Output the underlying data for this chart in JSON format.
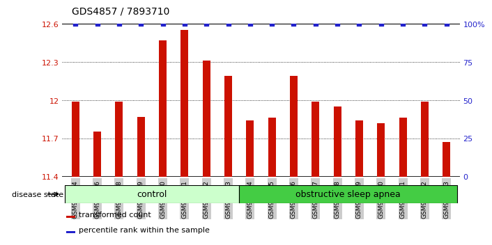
{
  "title": "GDS4857 / 7893710",
  "samples": [
    "GSM949164",
    "GSM949166",
    "GSM949168",
    "GSM949169",
    "GSM949170",
    "GSM949171",
    "GSM949172",
    "GSM949173",
    "GSM949174",
    "GSM949175",
    "GSM949176",
    "GSM949177",
    "GSM949178",
    "GSM949179",
    "GSM949180",
    "GSM949181",
    "GSM949182",
    "GSM949183"
  ],
  "transformed_count": [
    11.99,
    11.75,
    11.99,
    11.87,
    12.47,
    12.55,
    12.31,
    12.19,
    11.84,
    11.86,
    12.19,
    11.99,
    11.95,
    11.84,
    11.82,
    11.86,
    11.99,
    11.67
  ],
  "ylim": [
    11.4,
    12.6
  ],
  "yticks": [
    11.4,
    11.7,
    12.0,
    12.3,
    12.6
  ],
  "ytick_labels": [
    "11.4",
    "11.7",
    "12",
    "12.3",
    "12.6"
  ],
  "right_yticks": [
    0,
    25,
    50,
    75,
    100
  ],
  "right_ytick_labels": [
    "0",
    "25",
    "50",
    "75",
    "100%"
  ],
  "bar_color": "#cc1100",
  "percentile_color": "#2222cc",
  "grid_color": "#000000",
  "bg_color": "#ffffff",
  "n_control": 8,
  "n_osa": 10,
  "control_label": "control",
  "osa_label": "obstructive sleep apnea",
  "disease_state_label": "disease state",
  "control_bg": "#ccffcc",
  "osa_bg": "#44cc44",
  "legend_bar_label": "transformed count",
  "legend_percentile_label": "percentile rank within the sample",
  "tick_bg": "#cccccc",
  "bar_width": 0.35
}
